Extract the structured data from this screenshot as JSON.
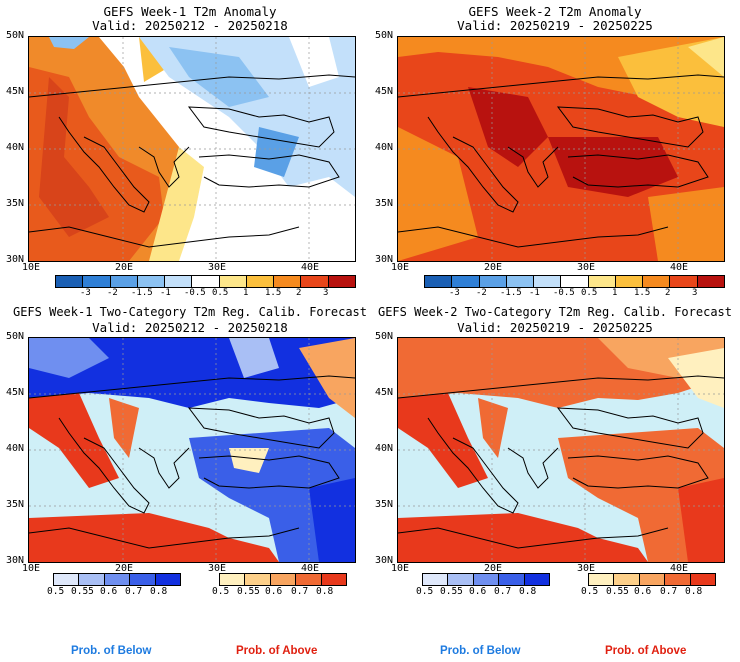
{
  "panels": [
    {
      "title": "GEFS Week-1 T2m Anomaly",
      "valid": "Valid: 20250212 - 20250218",
      "lat_labels": [
        "50N",
        "45N",
        "40N",
        "35N",
        "30N"
      ],
      "lon_labels": [
        "10E",
        "20E",
        "30E",
        "40E"
      ]
    },
    {
      "title": "GEFS Week-2 T2m Anomaly",
      "valid": "Valid: 20250219 - 20250225",
      "lat_labels": [
        "50N",
        "45N",
        "40N",
        "35N",
        "30N"
      ],
      "lon_labels": [
        "10E",
        "20E",
        "30E",
        "40E"
      ]
    },
    {
      "title": "GEFS Week-1 Two-Category T2m Reg. Calib. Forecast",
      "valid": "Valid: 20250212 - 20250218",
      "lat_labels": [
        "50N",
        "45N",
        "40N",
        "35N",
        "30N"
      ],
      "lon_labels": [
        "10E",
        "20E",
        "30E",
        "40E"
      ]
    },
    {
      "title": "GEFS Week-2 Two-Category T2m Reg. Calib. Forecast",
      "valid": "Valid: 20250219 - 20250225",
      "lat_labels": [
        "50N",
        "45N",
        "40N",
        "35N",
        "30N"
      ],
      "lon_labels": [
        "10E",
        "20E",
        "30E",
        "40E"
      ]
    }
  ],
  "anomaly_colorbar": {
    "ticks": [
      "-3",
      "-2",
      "-1.5",
      "-1",
      "-0.5",
      "0.5",
      "1",
      "1.5",
      "2",
      "3"
    ],
    "colors": [
      "#1a5fb4",
      "#2f7fd6",
      "#5aa0e6",
      "#8cc2f2",
      "#c3e0fa",
      "#ffffff",
      "#fde68a",
      "#fbbf3c",
      "#f58a1f",
      "#e8461a",
      "#b8120f"
    ]
  },
  "prob_colorbar": {
    "below_ticks": [
      "0.5",
      "0.55",
      "0.6",
      "0.7",
      "0.8"
    ],
    "above_ticks": [
      "0.5",
      "0.55",
      "0.6",
      "0.7",
      "0.8"
    ],
    "below_colors": [
      "#dfe8fb",
      "#a9bff5",
      "#6f8ff0",
      "#3a5fe8",
      "#1230e0"
    ],
    "above_colors": [
      "#fff0bf",
      "#fdd08a",
      "#f8a560",
      "#f06a34",
      "#e8391c"
    ]
  },
  "footer": {
    "below_label": "Prob. of Below",
    "above_label": "Prob. of Above",
    "below_color": "#1e7be0",
    "above_color": "#e02010"
  },
  "map_colors": {
    "sea": "#cfeff7",
    "white": "#ffffff"
  }
}
